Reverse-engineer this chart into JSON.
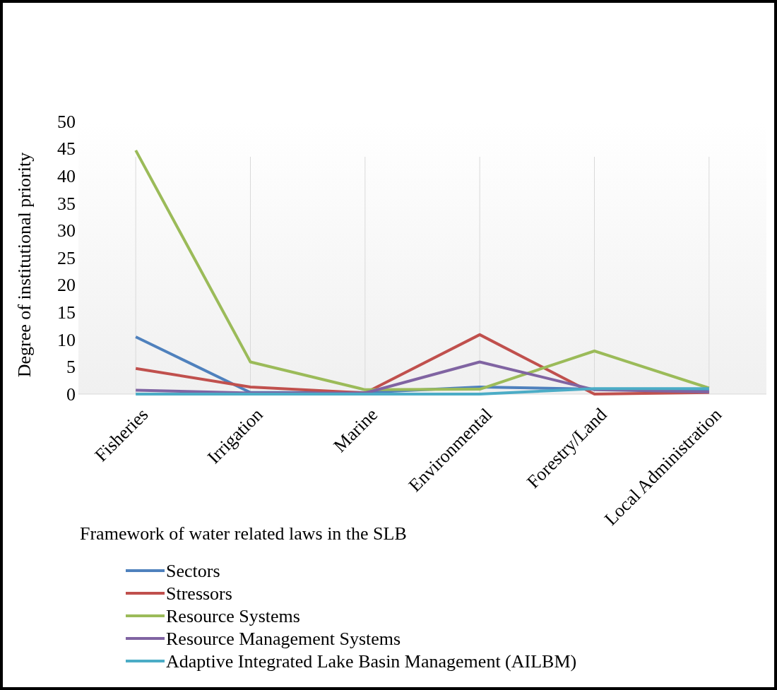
{
  "chart_data": {
    "type": "line",
    "xlabel": "Framework of water related laws in the SLB",
    "ylabel": "Degree of institutional priority",
    "categories": [
      "Fisheries",
      "Irrigation",
      "Marine",
      "Environmental",
      "Forestry/Land",
      "Local Administration"
    ],
    "ylim": [
      0,
      50
    ],
    "yticks": [
      0,
      5,
      10,
      15,
      20,
      25,
      30,
      35,
      40,
      45,
      50
    ],
    "grid": "x",
    "legend": "bottom",
    "marker": "none",
    "line_style": "solid",
    "series": [
      {
        "name": "Sectors",
        "color": "#4f81bd",
        "values": [
          10.5,
          0.3,
          0.3,
          1.3,
          0.9,
          0.7
        ]
      },
      {
        "name": "Stressors",
        "color": "#c0504d",
        "values": [
          4.7,
          1.3,
          0.2,
          10.9,
          0,
          0.3
        ]
      },
      {
        "name": "Resource Systems",
        "color": "#9bbb59",
        "values": [
          44.7,
          5.9,
          0.8,
          0.9,
          7.9,
          1.1
        ]
      },
      {
        "name": "Resource Management Systems",
        "color": "#8064a2",
        "values": [
          0.7,
          0.2,
          0.2,
          5.9,
          0.8,
          0.4
        ]
      },
      {
        "name": "Adaptive Integrated Lake Basin Management (AILBM)",
        "color": "#4bacc6",
        "values": [
          0,
          0,
          0,
          0,
          1,
          1
        ]
      }
    ]
  }
}
